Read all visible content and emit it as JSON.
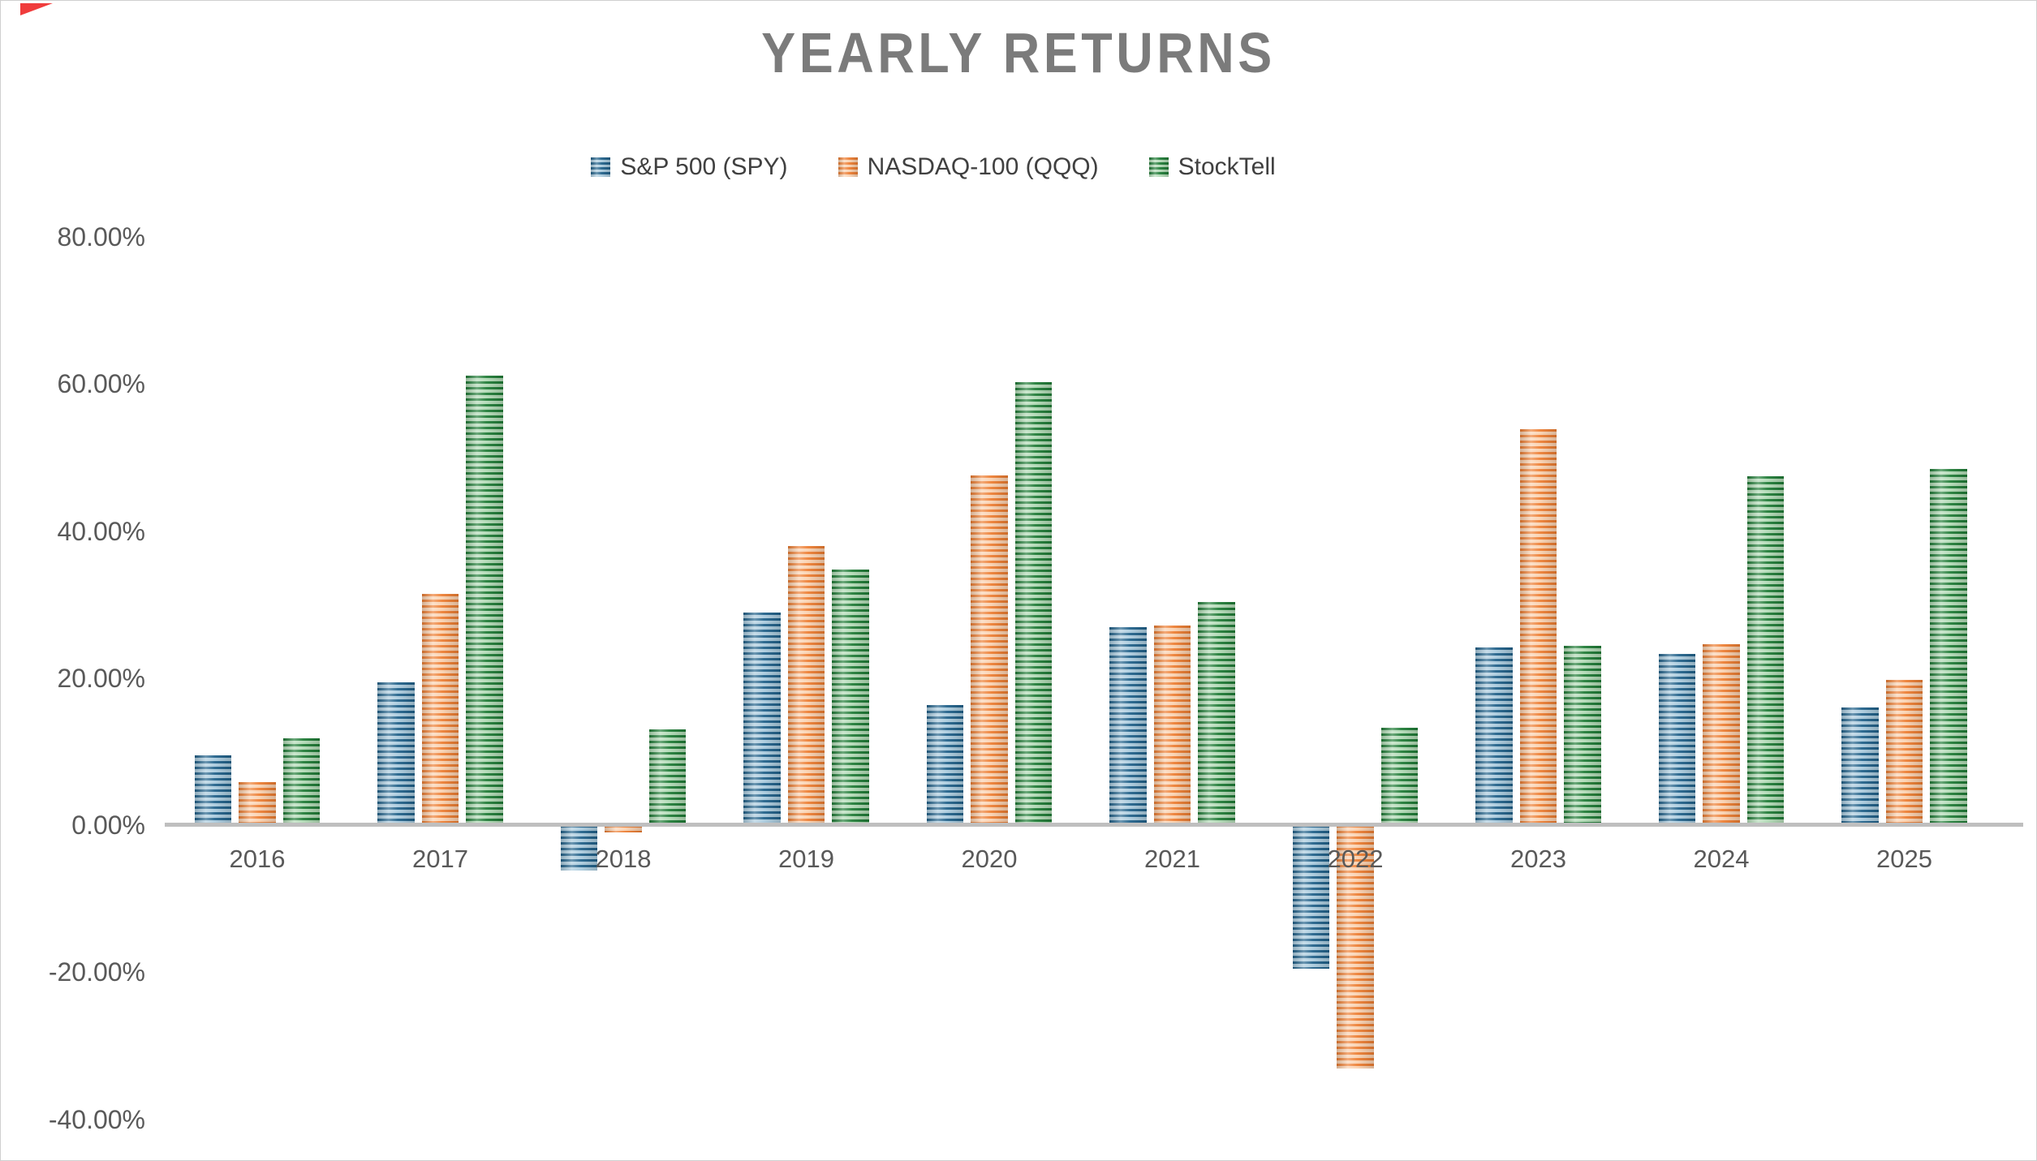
{
  "page": {
    "border_color": "#d0d0d0",
    "background": "#ffffff",
    "corner_mark_color": "#f03c3c"
  },
  "chart_data": {
    "type": "bar",
    "title": "YEARLY RETURNS",
    "title_color": "#7b7b7b",
    "legend_position": "top",
    "grid": false,
    "categories": [
      "2016",
      "2017",
      "2018",
      "2019",
      "2020",
      "2021",
      "2022",
      "2023",
      "2024",
      "2025"
    ],
    "series": [
      {
        "name": "S&P 500 (SPY)",
        "color_dark": "#1f6089",
        "color_light": "#a9cadd",
        "values": [
          9.5,
          19.4,
          -6.2,
          28.9,
          16.3,
          26.9,
          -19.5,
          24.2,
          23.3,
          16.0
        ]
      },
      {
        "name": "NASDAQ-100 (QQQ)",
        "color_dark": "#ed7d31",
        "color_light": "#fad0ae",
        "values": [
          5.9,
          31.5,
          -1.0,
          38.0,
          47.6,
          27.2,
          -33.1,
          53.8,
          24.6,
          19.7
        ]
      },
      {
        "name": "StockTell",
        "color_dark": "#1e7b35",
        "color_light": "#b0d9b4",
        "values": [
          11.8,
          61.1,
          13.0,
          34.8,
          60.3,
          30.3,
          13.2,
          24.4,
          47.4,
          48.4
        ]
      }
    ],
    "y_ticks": [
      {
        "label": "80.00%",
        "value": 80
      },
      {
        "label": "60.00%",
        "value": 60
      },
      {
        "label": "40.00%",
        "value": 40
      },
      {
        "label": "20.00%",
        "value": 20
      },
      {
        "label": "0.00%",
        "value": 0
      },
      {
        "label": "-20.00%",
        "value": -20
      },
      {
        "label": "-40.00%",
        "value": -40
      }
    ],
    "ylim": [
      -40,
      80
    ],
    "axis_color": "#bfbfbf",
    "label_color": "#595959",
    "legend_text_color": "#404040"
  }
}
